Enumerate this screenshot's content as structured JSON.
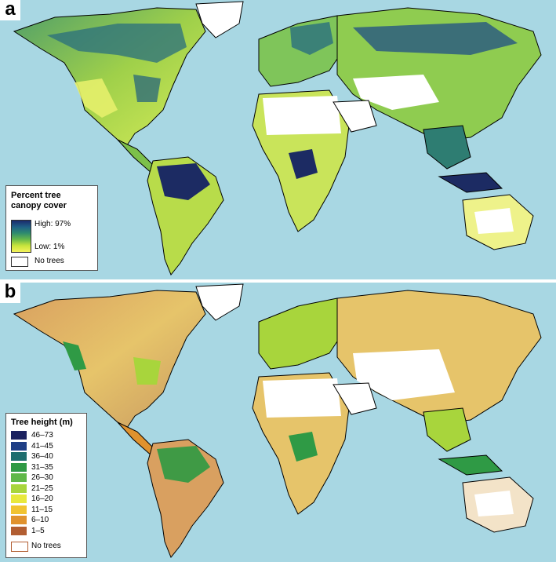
{
  "panel_a": {
    "letter": "a",
    "legend": {
      "title_line1": "Percent tree",
      "title_line2": "canopy cover",
      "high_label": "High: 97%",
      "low_label": "Low: 1%",
      "no_trees_label": "No trees",
      "gradient_colors": [
        "#1a2a6c",
        "#1f5f86",
        "#2e8b6e",
        "#67b84a",
        "#c8e43c",
        "#f4f35a"
      ]
    }
  },
  "panel_b": {
    "letter": "b",
    "legend": {
      "title": "Tree height (m)",
      "classes": [
        {
          "label": "46–73",
          "color": "#1b2260"
        },
        {
          "label": "41–45",
          "color": "#1f3f86"
        },
        {
          "label": "36–40",
          "color": "#1e6d6e"
        },
        {
          "label": "31–35",
          "color": "#2f9a45"
        },
        {
          "label": "26–30",
          "color": "#5fb848"
        },
        {
          "label": "21–25",
          "color": "#a8d53c"
        },
        {
          "label": "16–20",
          "color": "#e8e83c"
        },
        {
          "label": "11–15",
          "color": "#f1c330"
        },
        {
          "label": "6–10",
          "color": "#e0922e"
        },
        {
          "label": "1–5",
          "color": "#b25e32"
        }
      ],
      "no_trees_label": "No trees"
    }
  },
  "colors": {
    "ocean": "#a8d7e3",
    "land_outline": "#000000"
  }
}
